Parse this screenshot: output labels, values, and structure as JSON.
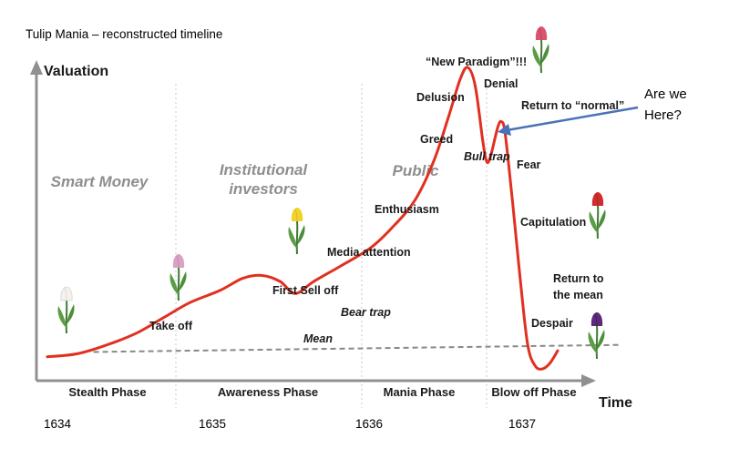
{
  "chart_data": {
    "type": "line",
    "title": "Tulip Mania – reconstructed timeline",
    "ylabel": "Valuation",
    "xlabel": "Time",
    "x_ticks": [
      "1634",
      "1635",
      "1636",
      "1637"
    ],
    "top_groups": [
      {
        "lines": [
          "Smart Money"
        ]
      },
      {
        "lines": [
          "Institutional",
          "investors"
        ]
      },
      {
        "lines": [
          "Public"
        ]
      }
    ],
    "phases": [
      "Stealth Phase",
      "Awareness Phase",
      "Mania Phase",
      "Blow off Phase"
    ],
    "series": [
      {
        "values": [
          [
            0.0,
            0.04
          ],
          [
            0.08,
            0.05
          ],
          [
            0.16,
            0.08
          ],
          [
            0.24,
            0.12
          ],
          [
            0.31,
            0.17
          ],
          [
            0.38,
            0.22
          ],
          [
            0.46,
            0.26
          ],
          [
            0.52,
            0.3
          ],
          [
            0.57,
            0.31
          ],
          [
            0.62,
            0.29
          ],
          [
            0.66,
            0.25
          ],
          [
            0.71,
            0.29
          ],
          [
            0.78,
            0.34
          ],
          [
            0.86,
            0.4
          ],
          [
            0.92,
            0.47
          ],
          [
            0.98,
            0.56
          ],
          [
            1.03,
            0.69
          ],
          [
            1.07,
            0.84
          ],
          [
            1.1,
            0.96
          ],
          [
            1.12,
            1.0
          ],
          [
            1.14,
            0.94
          ],
          [
            1.16,
            0.76
          ],
          [
            1.17,
            0.69
          ],
          [
            1.18,
            0.7
          ],
          [
            1.2,
            0.8
          ],
          [
            1.21,
            0.82
          ],
          [
            1.22,
            0.78
          ],
          [
            1.24,
            0.55
          ],
          [
            1.26,
            0.3
          ],
          [
            1.28,
            0.08
          ],
          [
            1.3,
            0.01
          ],
          [
            1.32,
            0.0
          ],
          [
            1.34,
            0.02
          ],
          [
            1.36,
            0.06
          ]
        ]
      }
    ],
    "mean_line": [
      [
        0.05,
        0.05
      ],
      [
        1.58,
        0.17
      ]
    ],
    "mean_label": "Mean",
    "annotations": [
      {
        "text": "Take off",
        "x": 0.21,
        "y": 0.1
      },
      {
        "text": "First Sell off",
        "x": 0.57,
        "y": 0.31
      },
      {
        "text": "Bear trap",
        "x": 0.74,
        "y": 0.27
      },
      {
        "text": "Media attention",
        "x": 0.88,
        "y": 0.41
      },
      {
        "text": "Enthusiasm",
        "x": 0.98,
        "y": 0.56
      },
      {
        "text": "Greed",
        "x": 1.05,
        "y": 0.74
      },
      {
        "text": "Delusion",
        "x": 1.08,
        "y": 0.87
      },
      {
        "text": "“New Paradigm”!!!",
        "x": 1.12,
        "y": 1.0
      },
      {
        "text": "Denial",
        "x": 1.15,
        "y": 0.95
      },
      {
        "text": "Bull trap",
        "x": 1.17,
        "y": 0.69
      },
      {
        "text": "Return to “normal”",
        "x": 1.21,
        "y": 0.82
      },
      {
        "text": "Fear",
        "x": 1.23,
        "y": 0.66
      },
      {
        "text": "Capitulation",
        "x": 1.26,
        "y": 0.45
      },
      {
        "text": "Return to",
        "x": 1.35,
        "y": 0.27
      },
      {
        "text": "the mean",
        "x": 1.35,
        "y": 0.23
      },
      {
        "text": "Despair",
        "x": 1.3,
        "y": 0.14
      }
    ],
    "callout": {
      "lines": [
        "Are we",
        "Here?"
      ],
      "arrow_color": "#4a72b8"
    },
    "colors": {
      "curve": "#e03020",
      "mean": "#888888",
      "axis": "#909090",
      "divider": "#c8c8c8"
    },
    "icons": [
      "tulip-white-icon",
      "tulip-pink-icon",
      "tulip-yellow-icon",
      "tulip-red-pink-icon",
      "tulip-red-icon",
      "tulip-purple-icon"
    ]
  }
}
